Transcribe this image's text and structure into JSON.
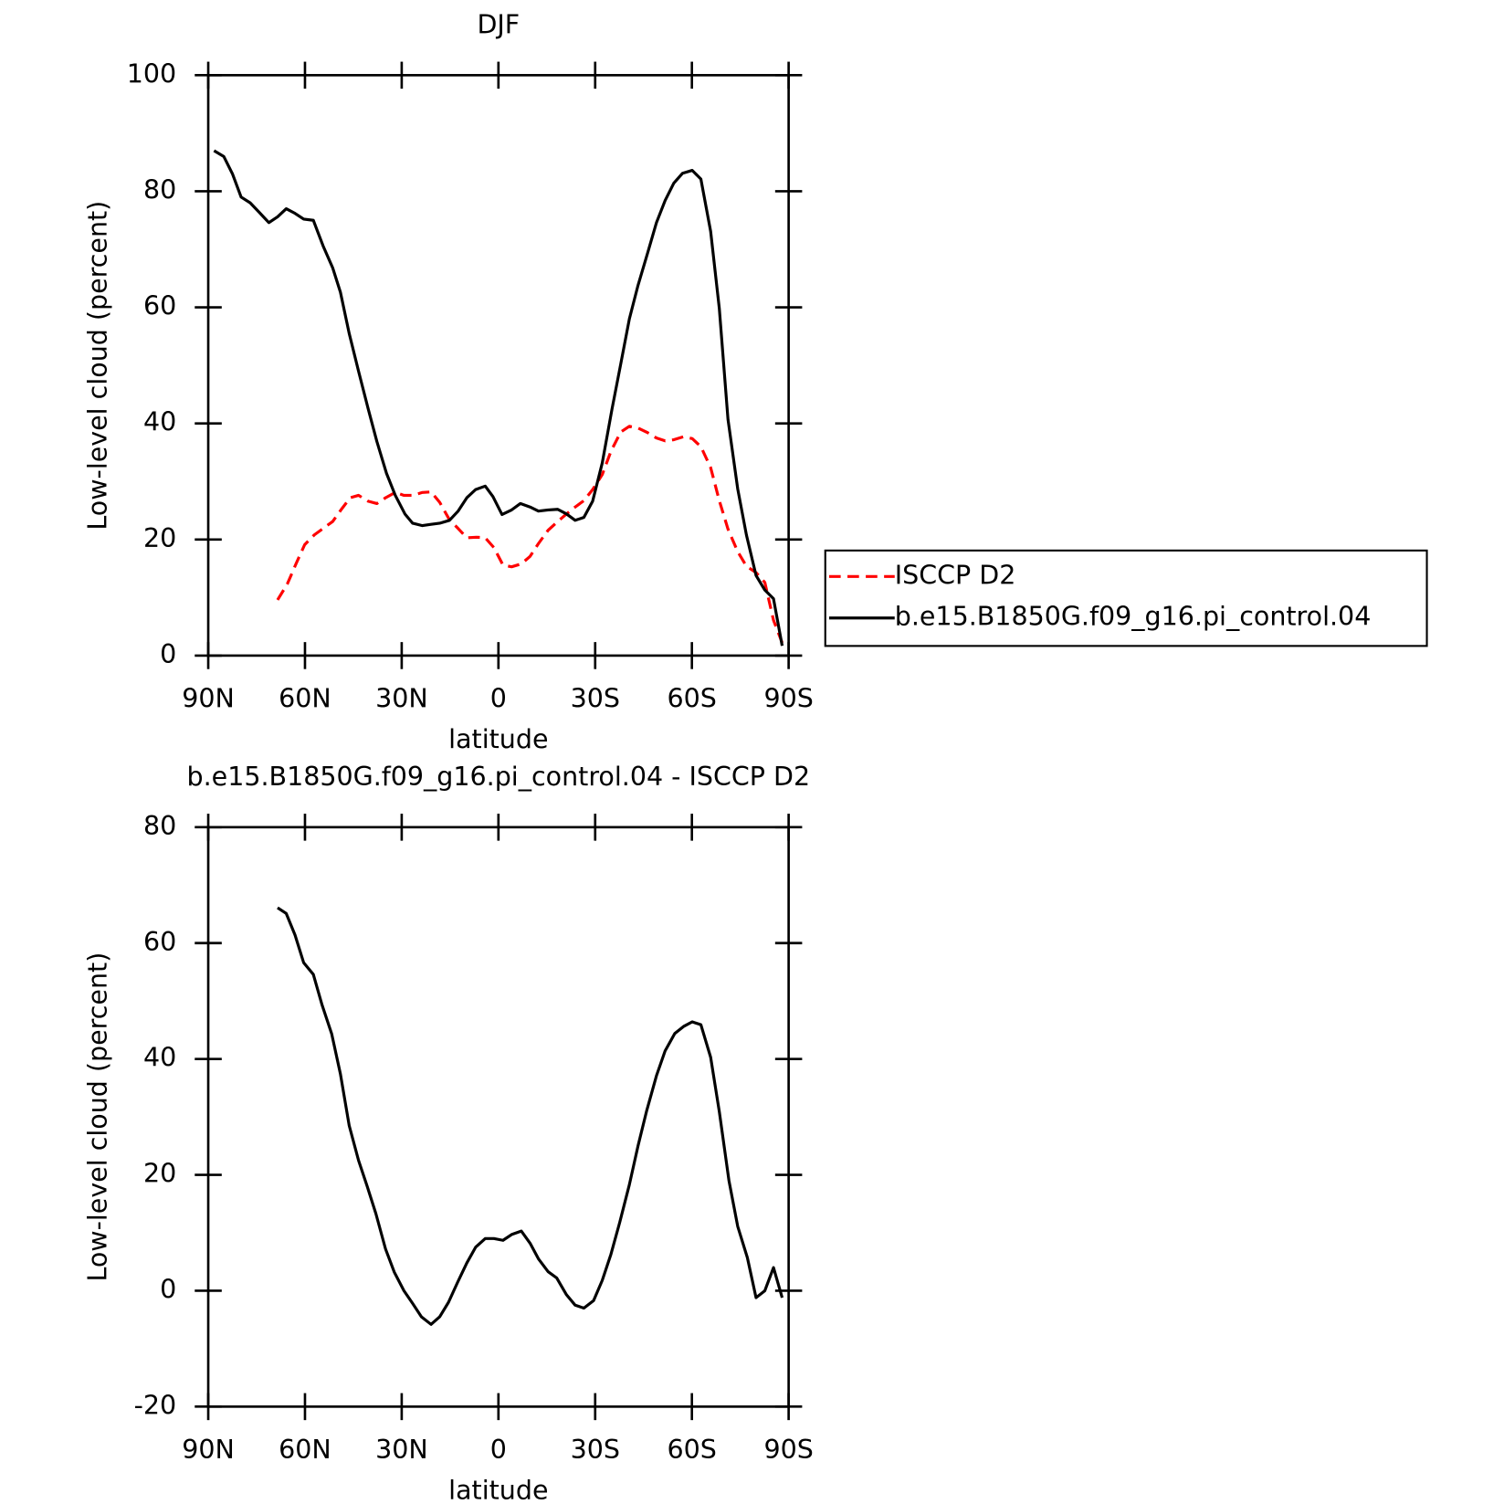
{
  "chart_data": [
    {
      "type": "line",
      "title": "DJF",
      "xlabel": "latitude",
      "ylabel": "Low-level cloud (percent)",
      "xlim": [
        90,
        -90
      ],
      "xticks": [
        {
          "value": 90,
          "label": "90N"
        },
        {
          "value": 60,
          "label": "60N"
        },
        {
          "value": 30,
          "label": "30N"
        },
        0,
        {
          "value": -30,
          "label": "30S"
        },
        {
          "value": -60,
          "label": "60S"
        },
        {
          "value": -90,
          "label": "90S"
        }
      ],
      "ylim": [
        0,
        100
      ],
      "yticks": [
        0,
        20,
        40,
        60,
        80,
        100
      ],
      "legend": "right",
      "series": [
        {
          "name": "ISCCP D2",
          "color": "#ff0000",
          "style": "dashed",
          "x": [
            68.5,
            65.5,
            62.8,
            60.1,
            57.1,
            54.4,
            51.4,
            48.7,
            46,
            43.4,
            40.4,
            37.7,
            35,
            32,
            29.3,
            26.6,
            23.6,
            20.9,
            18.2,
            15.2,
            12.5,
            9.8,
            6.8,
            4.1,
            1.4,
            -1.4,
            -4.1,
            -7.1,
            -9.8,
            -12.4,
            -15.4,
            -18.4,
            -21.1,
            -23.8,
            -26.5,
            -29.2,
            -32.2,
            -34.9,
            -37.9,
            -40.6,
            -43.3,
            -46.3,
            -49,
            -51.7,
            -54.4,
            -57.4,
            -60.1,
            -62.8,
            -65.8,
            -68.5,
            -71.2,
            -74.2,
            -76.9,
            -79.9,
            -82.6,
            -85.3,
            -88
          ],
          "values": [
            9.6,
            12.3,
            15.8,
            19.1,
            20.8,
            21.9,
            23.1,
            25.2,
            27.2,
            27.6,
            26.6,
            26.2,
            27.2,
            28.1,
            27.6,
            27.6,
            28.1,
            28.2,
            26.4,
            23.4,
            21.9,
            20.3,
            20.4,
            20.3,
            18.6,
            15.6,
            15.3,
            15.8,
            17.1,
            19.3,
            21.6,
            23.1,
            24.4,
            25.6,
            26.7,
            28.6,
            31.2,
            35.2,
            38.5,
            39.5,
            39.2,
            38.4,
            37.5,
            37,
            37.2,
            37.7,
            37.4,
            36,
            32.4,
            26.7,
            21.8,
            17.9,
            15.4,
            14.3,
            12.6,
            6.1,
            2.2
          ]
        },
        {
          "name": "b.e15.B1850G.f09_g16.pi_control.04",
          "color": "#000000",
          "style": "solid",
          "x": [
            88.2,
            85.2,
            82.5,
            79.8,
            77,
            74.4,
            71.2,
            68.5,
            65.8,
            63.1,
            60.4,
            57.4,
            54.4,
            51.4,
            49,
            46.3,
            43.4,
            40.4,
            37.7,
            34.7,
            32,
            29,
            26.6,
            23.6,
            20.9,
            18.2,
            15.2,
            12.5,
            9.8,
            7.1,
            4.1,
            1.7,
            -1.1,
            -4.1,
            -6.8,
            -9.8,
            -12.4,
            -15.4,
            -18.4,
            -21.1,
            -23.8,
            -26.5,
            -29.2,
            -32.2,
            -35.2,
            -37.9,
            -40.6,
            -43.3,
            -46.3,
            -49,
            -51.7,
            -54.4,
            -57.1,
            -60.1,
            -62.8,
            -65.8,
            -68.5,
            -71.2,
            -74.2,
            -76.9,
            -79.9,
            -82.6,
            -85.3,
            -88
          ],
          "values": [
            87,
            86,
            83,
            79,
            78,
            76.5,
            74.6,
            75.6,
            77,
            76.2,
            75.2,
            75,
            70.6,
            66.8,
            62.6,
            55.5,
            49,
            42.5,
            36.9,
            31.4,
            27.6,
            24.4,
            22.8,
            22.4,
            22.6,
            22.8,
            23.3,
            24.9,
            27.2,
            28.6,
            29.2,
            27.4,
            24.3,
            25.1,
            26.2,
            25.6,
            24.9,
            25.1,
            25.2,
            24.4,
            23.3,
            23.8,
            26.6,
            33.2,
            42.4,
            50.2,
            58,
            63.8,
            69.4,
            74.6,
            78.4,
            81.4,
            83.1,
            83.6,
            82.1,
            73.1,
            59.8,
            40.7,
            28.7,
            20.8,
            13.8,
            11.3,
            9.8,
            1.7
          ]
        }
      ]
    },
    {
      "type": "line",
      "title": "b.e15.B1850G.f09_g16.pi_control.04 - ISCCP D2",
      "xlabel": "latitude",
      "ylabel": "Low-level cloud (percent)",
      "xlim": [
        90,
        -90
      ],
      "xticks": [
        {
          "value": 90,
          "label": "90N"
        },
        {
          "value": 60,
          "label": "60N"
        },
        {
          "value": 30,
          "label": "30N"
        },
        0,
        {
          "value": -30,
          "label": "30S"
        },
        {
          "value": -60,
          "label": "60S"
        },
        {
          "value": -90,
          "label": "90S"
        }
      ],
      "ylim": [
        -20,
        80
      ],
      "yticks": [
        -20,
        0,
        20,
        40,
        60,
        80
      ],
      "series": [
        {
          "color": "#000000",
          "style": "solid",
          "x": [
            68.5,
            65.8,
            63.1,
            60.4,
            57.4,
            54.7,
            51.7,
            49,
            46.3,
            43.4,
            40.7,
            38,
            35,
            32.3,
            29.3,
            26.6,
            23.9,
            20.9,
            18.2,
            15.5,
            12.8,
            9.8,
            7.1,
            4.1,
            1.4,
            -1.4,
            -4.1,
            -7.1,
            -9.8,
            -12.4,
            -15.4,
            -18.1,
            -21.1,
            -23.8,
            -26.5,
            -29.5,
            -32.2,
            -34.9,
            -37.6,
            -40.6,
            -43.3,
            -46,
            -49,
            -51.7,
            -54.7,
            -57.4,
            -60.1,
            -62.8,
            -65.8,
            -68.5,
            -71.5,
            -74.2,
            -77.2,
            -79.9,
            -82.6,
            -85.3,
            -88
          ],
          "values": [
            66.1,
            65.1,
            61.4,
            56.6,
            54.6,
            49.3,
            44.3,
            37.4,
            28.5,
            22.5,
            18,
            13.3,
            7.2,
            3.2,
            0,
            -2.2,
            -4.5,
            -5.8,
            -4.5,
            -2,
            1.3,
            4.8,
            7.5,
            9,
            9,
            8.7,
            9.7,
            10.3,
            8.2,
            5.5,
            3.3,
            2.2,
            -0.7,
            -2.5,
            -3,
            -1.7,
            1.8,
            6.3,
            11.8,
            18.3,
            25,
            31.1,
            37.1,
            41.4,
            44.4,
            45.6,
            46.4,
            45.9,
            40.3,
            30.9,
            19,
            11.1,
            5.7,
            -1.2,
            0,
            4,
            -1.2
          ]
        }
      ]
    }
  ]
}
